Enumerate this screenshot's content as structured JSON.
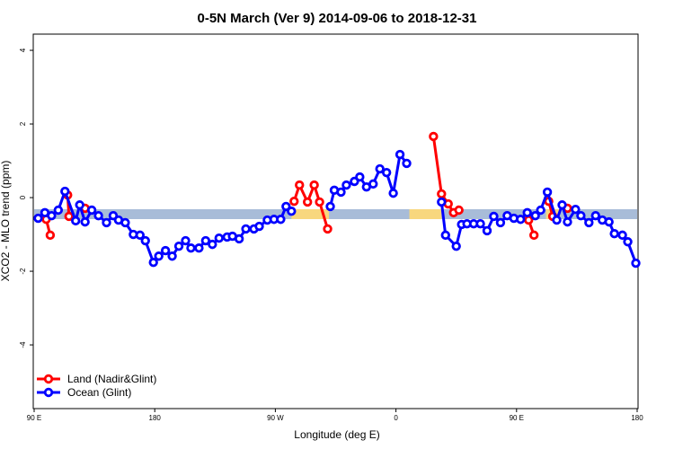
{
  "chart_data": {
    "type": "line",
    "title": "0-5N March (Ver 9)   2014-09-06 to 2018-12-31",
    "x_label": "Longitude (deg E)",
    "y_label": "XCO2 - MLO trend (ppm)",
    "xlim": [
      90,
      540
    ],
    "ylim": [
      -5.73,
      4.44
    ],
    "xticks": [
      {
        "value": 90,
        "label": "90 E"
      },
      180,
      {
        "value": 270,
        "label": "90 W"
      },
      {
        "value": 360,
        "label": "0"
      },
      {
        "value": 450,
        "label": "90 E"
      },
      {
        "value": 540,
        "label": "180"
      }
    ],
    "yticks": [
      -4,
      -2,
      0,
      2,
      4
    ],
    "legend": "bottom-left",
    "band": {
      "value": -0.45,
      "color": "#a8bcd8",
      "land_color": "#f8d77e",
      "land_ranges": [
        [
          282,
          310
        ],
        [
          370,
          394
        ],
        [
          472,
          482
        ]
      ]
    },
    "series": [
      {
        "name": "Land (Nadir&Glint)",
        "color": "#ff0000",
        "x": [
          99,
          102,
          null,
          115,
          116,
          null,
          128,
          null,
          284,
          288,
          294,
          299,
          303,
          309,
          null,
          388,
          394,
          399,
          403,
          407,
          null,
          459,
          463,
          null,
          474,
          477,
          null,
          488
        ],
        "values": [
          -0.59,
          -1.02,
          null,
          0.07,
          -0.51,
          null,
          -0.29,
          null,
          -0.1,
          0.34,
          -0.12,
          0.34,
          -0.12,
          -0.85,
          null,
          1.66,
          0.1,
          -0.17,
          -0.41,
          -0.34,
          null,
          -0.61,
          -1.02,
          null,
          -0.1,
          -0.51,
          null,
          -0.29
        ]
      },
      {
        "name": "Ocean (Glint)",
        "color": "#0000ff",
        "x": [
          93,
          98,
          103,
          108,
          113,
          121,
          124,
          128,
          133,
          138,
          144,
          149,
          153,
          158,
          164,
          169,
          173,
          179,
          183,
          188,
          193,
          198,
          203,
          207,
          213,
          218,
          223,
          228,
          234,
          238,
          243,
          248,
          254,
          258,
          264,
          269,
          274,
          278,
          282,
          null,
          311,
          314,
          319,
          323,
          329,
          333,
          338,
          343,
          348,
          353,
          358,
          363,
          368,
          null,
          394,
          397,
          405,
          409,
          413,
          418,
          423,
          428,
          433,
          438,
          443,
          448,
          453,
          458,
          464,
          468,
          473,
          480,
          484,
          488,
          494,
          498,
          504,
          509,
          514,
          519,
          523,
          529,
          533,
          539
        ],
        "values": [
          -0.56,
          -0.41,
          -0.49,
          -0.34,
          0.17,
          -0.63,
          -0.2,
          -0.66,
          -0.34,
          -0.49,
          -0.68,
          -0.49,
          -0.61,
          -0.68,
          -1.0,
          -1.02,
          -1.17,
          -1.76,
          -1.59,
          -1.44,
          -1.59,
          -1.32,
          -1.17,
          -1.37,
          -1.37,
          -1.17,
          -1.27,
          -1.1,
          -1.07,
          -1.05,
          -1.12,
          -0.85,
          -0.85,
          -0.78,
          -0.61,
          -0.59,
          -0.59,
          -0.24,
          -0.37,
          null,
          -0.24,
          0.2,
          0.15,
          0.34,
          0.44,
          0.56,
          0.29,
          0.37,
          0.78,
          0.68,
          0.12,
          1.17,
          0.93,
          null,
          -0.12,
          -1.02,
          -1.32,
          -0.73,
          -0.71,
          -0.71,
          -0.71,
          -0.9,
          -0.51,
          -0.68,
          -0.49,
          -0.56,
          -0.59,
          -0.41,
          -0.49,
          -0.34,
          0.15,
          -0.61,
          -0.2,
          -0.66,
          -0.32,
          -0.49,
          -0.68,
          -0.49,
          -0.61,
          -0.66,
          -0.98,
          -1.02,
          -1.2,
          -1.78
        ]
      }
    ]
  }
}
